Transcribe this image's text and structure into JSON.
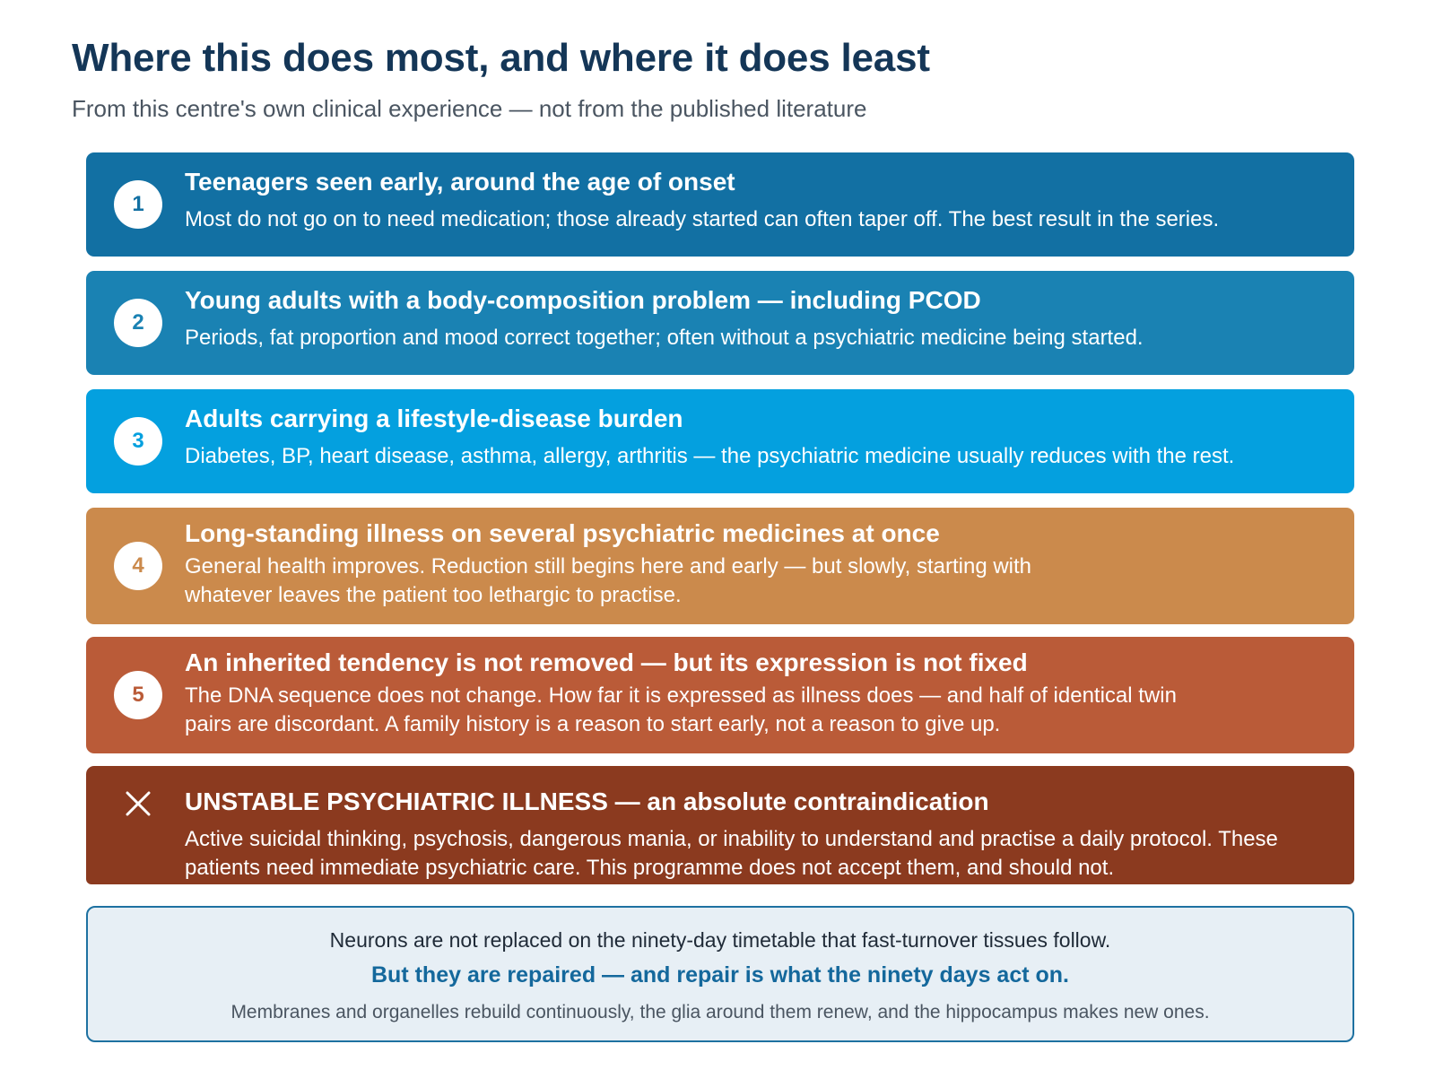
{
  "header": {
    "title": "Where this does most, and where it does least",
    "subtitle": "From this centre's own clinical experience — not from the published literature"
  },
  "tiers": [
    {
      "badge": "1",
      "title": "Teenagers seen early, around the age of onset",
      "description": "Most do not go on to need medication; those already started can often taper off. The best result in the series.",
      "color": "#1270a3"
    },
    {
      "badge": "2",
      "title": "Young adults with a body-composition problem — including PCOD",
      "description": "Periods, fat proportion and mood correct together; often without a psychiatric medicine being started.",
      "color": "#1a82b3"
    },
    {
      "badge": "3",
      "title": "Adults carrying a lifestyle-disease burden",
      "description": "Diabetes, BP, heart disease, asthma, allergy, arthritis — the psychiatric medicine usually reduces with the rest.",
      "color": "#04a0df"
    },
    {
      "badge": "4",
      "title": "Long-standing illness on several psychiatric medicines at once",
      "description": "General health improves. Reduction still begins here and early — but slowly, starting with whatever leaves the patient too lethargic to practise.",
      "color": "#cb8a4c"
    },
    {
      "badge": "5",
      "title": "An inherited tendency is not removed — but its expression is not fixed",
      "description": "The DNA sequence does not change. How far it is expressed as illness does — and half of identical twin pairs are discordant. A family history is a reason to start early, not a reason to give up.",
      "color": "#ba5b38"
    },
    {
      "icon": "cross-icon",
      "title": "UNSTABLE PSYCHIATRIC ILLNESS — an absolute contraindication",
      "description": "Active suicidal thinking, psychosis, dangerous mania, or inability to understand and practise a daily protocol. These patients need immediate psychiatric care. This programme does not accept them, and should not.",
      "color": "#8b3a1f"
    }
  ],
  "note": {
    "line1": "Neurons are not replaced on the ninety-day timetable that fast-turnover tissues follow.",
    "line2": "But they are repaired — and repair is what the ninety days act on.",
    "line3": "Membranes and organelles rebuild continuously, the glia around them renew, and the hippocampus makes new ones."
  }
}
